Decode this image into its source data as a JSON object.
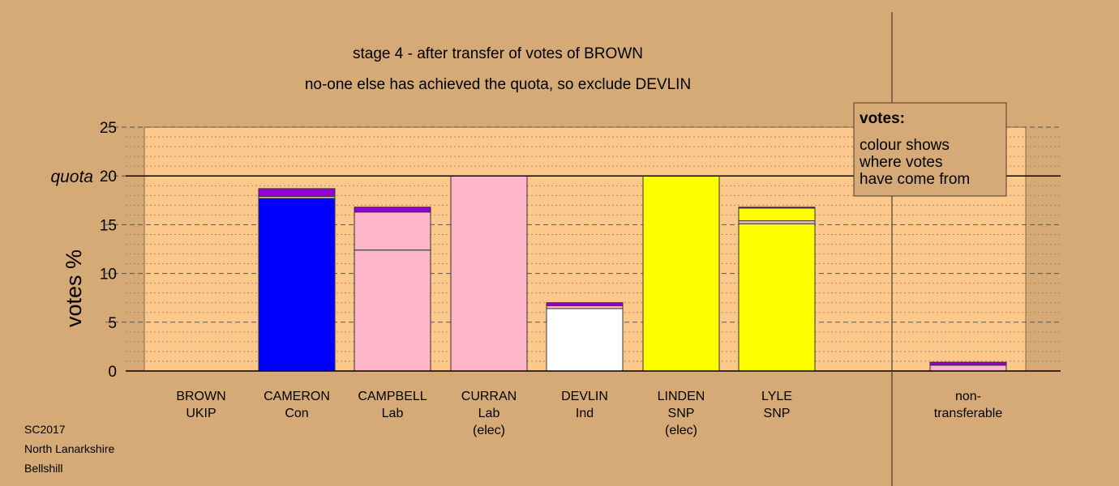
{
  "chart_data": {
    "type": "bar",
    "stacked": true,
    "title": "stage 4 - after transfer of votes of BROWN",
    "subtitle": "no-one else has achieved the quota, so exclude DEVLIN",
    "ylabel": "votes %",
    "xlabel": "",
    "ylim": [
      0,
      25
    ],
    "yticks": [
      0,
      5,
      10,
      15,
      20,
      25
    ],
    "quota": 20,
    "quota_label": "quota",
    "grid": true,
    "legend_position": "top-right",
    "categories": [
      {
        "name": "BROWN",
        "party": "UKIP",
        "note": ""
      },
      {
        "name": "CAMERON",
        "party": "Con",
        "note": ""
      },
      {
        "name": "CAMPBELL",
        "party": "Lab",
        "note": ""
      },
      {
        "name": "CURRAN",
        "party": "Lab",
        "note": "(elec)"
      },
      {
        "name": "DEVLIN",
        "party": "Ind",
        "note": ""
      },
      {
        "name": "LINDEN",
        "party": "SNP",
        "note": "(elec)"
      },
      {
        "name": "LYLE",
        "party": "SNP",
        "note": ""
      },
      {
        "name": "non-",
        "party": "transferable",
        "note": ""
      }
    ],
    "stacks": [
      [],
      [
        {
          "value": 17.7,
          "color": "#0000ff"
        },
        {
          "value": 0.2,
          "color": "#ffb6c8"
        },
        {
          "value": 0.8,
          "color": "#9400d3"
        }
      ],
      [
        {
          "value": 12.4,
          "color": "#ffb6c8"
        },
        {
          "value": 3.9,
          "color": "#ffb6c8"
        },
        {
          "value": 0.5,
          "color": "#9400d3"
        }
      ],
      [
        {
          "value": 20.0,
          "color": "#ffb6c8"
        }
      ],
      [
        {
          "value": 6.4,
          "color": "#ffffff"
        },
        {
          "value": 0.3,
          "color": "#ffb6c8"
        },
        {
          "value": 0.3,
          "color": "#9400d3"
        }
      ],
      [
        {
          "value": 20.0,
          "color": "#ffff00"
        }
      ],
      [
        {
          "value": 15.1,
          "color": "#ffff00"
        },
        {
          "value": 0.3,
          "color": "#ffb6c8"
        },
        {
          "value": 1.3,
          "color": "#ffff00"
        },
        {
          "value": 0.1,
          "color": "#9400d3"
        }
      ],
      [
        {
          "value": 0.6,
          "color": "#ffb6c8"
        },
        {
          "value": 0.3,
          "color": "#9400d3"
        }
      ]
    ]
  },
  "legend": {
    "title": "votes:",
    "lines": [
      "colour shows",
      "where votes",
      "have come from"
    ]
  },
  "footer": [
    "SC2017",
    "North Lanarkshire",
    "Bellshill"
  ],
  "colors": {
    "background": "#d5aa76",
    "plot_area": "#fcc88c"
  }
}
